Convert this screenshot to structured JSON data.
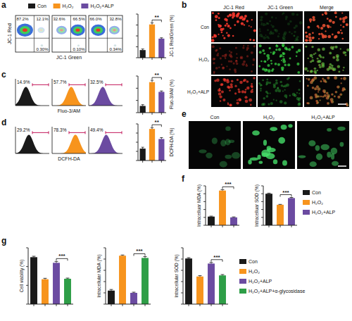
{
  "chart_data": [
    {
      "panel": "a",
      "type": "flow",
      "x_label": "JC-1 Green",
      "y_label": "JC-1 Red",
      "samples": [
        {
          "values": [
            87.2,
            12.1,
            0.3
          ],
          "value_labels": [
            "87.2%",
            "12.1%",
            "0.30%"
          ]
        },
        {
          "values": [
            32.6,
            66.5,
            0.1
          ],
          "value_labels": [
            "32.6%",
            "66.5%",
            "0.10%"
          ]
        },
        {
          "values": [
            66.0,
            32.8,
            0.34
          ],
          "value_labels": [
            "66.0%",
            "32.8%",
            "0.34%"
          ]
        }
      ]
    },
    {
      "type": "bar",
      "y_label": "JC-1 Red/Green (%)",
      "categories": [
        "Con",
        "H₂O₂",
        "H₂O₂+ALP"
      ],
      "values": [
        14,
        61,
        35
      ],
      "errors": [
        2,
        3,
        1.5
      ],
      "colors": [
        "#1a1a1a",
        "#f7941d",
        "#6b4ba1"
      ],
      "ylim": [
        0,
        80
      ],
      "yticks": [
        0,
        20,
        40,
        60,
        80
      ],
      "tick_labels": false,
      "legend": "top",
      "significance": [
        {
          "text": "**",
          "pair": [
            1,
            2
          ]
        }
      ]
    },
    {
      "panel": "b",
      "type": "image",
      "columns": [
        "JC-1 Red",
        "JC-1 Green",
        "Merge"
      ],
      "rows": [
        "Con",
        "H₂O₂",
        "H₂O₂+ALP"
      ]
    },
    {
      "panel": "c",
      "type": "histogram",
      "x_label": "Fluo-3/AM",
      "samples": [
        {
          "value": 14.9,
          "value_label": "14.9%",
          "color": "#1a1a1a"
        },
        {
          "value": 57.7,
          "value_label": "57.7%",
          "color": "#f7941d"
        },
        {
          "value": 32.5,
          "value_label": "32.5%",
          "color": "#6b4ba1"
        }
      ]
    },
    {
      "type": "bar",
      "y_label": "Fluo-3/AM (%)",
      "values": [
        11,
        50,
        34
      ],
      "errors": [
        2,
        3,
        1.5
      ],
      "colors": [
        "#1a1a1a",
        "#f7941d",
        "#6b4ba1"
      ],
      "ylim": [
        0,
        60
      ],
      "yticks": [
        0,
        20,
        40,
        60
      ],
      "tick_labels": false,
      "significance": [
        {
          "text": "**",
          "pair": [
            1,
            2
          ]
        }
      ]
    },
    {
      "panel": "d",
      "type": "histogram",
      "x_label": "DCFH-DA",
      "samples": [
        {
          "value": 29.2,
          "value_label": "29.2%",
          "color": "#1a1a1a"
        },
        {
          "value": 78.3,
          "value_label": "78.3%",
          "color": "#f7941d"
        },
        {
          "value": 49.4,
          "value_label": "49.4%",
          "color": "#6b4ba1"
        }
      ]
    },
    {
      "type": "bar",
      "y_label": "DCFH-DA (%)",
      "values": [
        26,
        69,
        47
      ],
      "errors": [
        3,
        3,
        3
      ],
      "colors": [
        "#1a1a1a",
        "#f7941d",
        "#6b4ba1"
      ],
      "ylim": [
        0,
        80
      ],
      "yticks": [
        0,
        20,
        40,
        60,
        80
      ],
      "tick_labels": false,
      "significance": [
        {
          "text": "**",
          "pair": [
            1,
            2
          ]
        }
      ]
    },
    {
      "panel": "e",
      "type": "image",
      "columns": [
        "Con",
        "H₂O₂",
        "H₂O₂+ALP"
      ]
    },
    {
      "panel": "f",
      "type": "bar",
      "y_label": "Intracelluar MDA (%)",
      "values": [
        0.55,
        2.2,
        0.5
      ],
      "errors": [
        0.03,
        0.06,
        0.03
      ],
      "colors": [
        "#1a1a1a",
        "#f7941d",
        "#6b4ba1"
      ],
      "ylim": [
        0,
        2.5
      ],
      "yticks": [
        0,
        0.5,
        1,
        1.5,
        2,
        2.5
      ],
      "tick_labels": false,
      "significance": [
        {
          "text": "***",
          "pair": [
            1,
            2
          ]
        }
      ]
    },
    {
      "type": "bar",
      "y_label": "Intracelluar SOD (%)",
      "categories": [
        "Con",
        "H₂O₂",
        "H₂O₂+ALP"
      ],
      "values": [
        80,
        52,
        69
      ],
      "errors": [
        1.5,
        1,
        1.5
      ],
      "colors": [
        "#1a1a1a",
        "#f7941d",
        "#6b4ba1"
      ],
      "ylim": [
        0,
        100
      ],
      "yticks": [
        0,
        20,
        40,
        60,
        80,
        100
      ],
      "tick_labels": false,
      "legend": "right",
      "significance": [
        {
          "text": "***",
          "pair": [
            1,
            2
          ]
        }
      ]
    },
    {
      "panel": "g",
      "type": "bar",
      "y_label": "Cell viability (%)",
      "values": [
        100,
        53,
        88,
        54
      ],
      "errors": [
        2,
        2,
        3,
        1.5
      ],
      "colors": [
        "#1a1a1a",
        "#f7941d",
        "#6b4ba1",
        "#2e9e47"
      ],
      "ylim": [
        0,
        120
      ],
      "yticks": [
        0,
        40,
        80,
        120
      ],
      "tick_labels": false,
      "significance": [
        {
          "text": "***",
          "pair": [
            2,
            3
          ]
        }
      ]
    },
    {
      "type": "bar",
      "y_label": "Intracellular MDA (%)",
      "values": [
        0.6,
        2.15,
        0.5,
        2.05
      ],
      "errors": [
        0.05,
        0.03,
        0.03,
        0.06
      ],
      "colors": [
        "#1a1a1a",
        "#f7941d",
        "#6b4ba1",
        "#2e9e47"
      ],
      "ylim": [
        0,
        2.5
      ],
      "yticks": [
        0,
        0.5,
        1,
        1.5,
        2,
        2.5
      ],
      "tick_labels": false,
      "significance": [
        {
          "text": "***",
          "pair": [
            2,
            3
          ]
        }
      ]
    },
    {
      "type": "bar",
      "y_label": "Intracellular SOD (%)",
      "categories": [
        "Con",
        "H₂O₂",
        "H₂O₂+ALP",
        "H₂O₂+ALP+α-glycosidase"
      ],
      "values": [
        81,
        49,
        72,
        51
      ],
      "errors": [
        1.5,
        1.5,
        2,
        1.5
      ],
      "colors": [
        "#1a1a1a",
        "#f7941d",
        "#6b4ba1",
        "#2e9e47"
      ],
      "ylim": [
        0,
        100
      ],
      "yticks": [
        0,
        20,
        40,
        60,
        80,
        100
      ],
      "tick_labels": false,
      "legend": "right",
      "significance": [
        {
          "text": "***",
          "pair": [
            2,
            3
          ]
        }
      ]
    }
  ]
}
